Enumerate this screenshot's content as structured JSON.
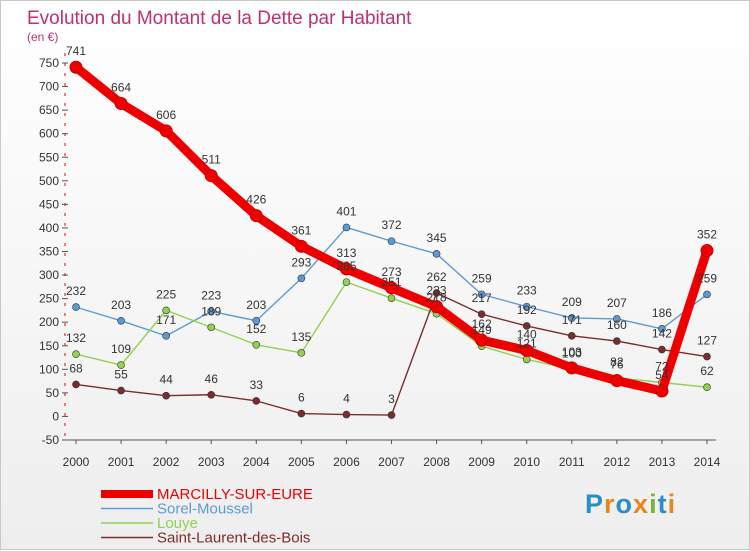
{
  "header": {
    "title": "Evolution du Montant de la Dette par Habitant",
    "unit": "(en €)"
  },
  "logo": {
    "text": "Proxiti",
    "colors": [
      "#2a8fc9",
      "#e8871a",
      "#2a8fc9",
      "#e8871a",
      "#7ab32e",
      "#2a8fc9",
      "#e8871a"
    ]
  },
  "chart_data": {
    "type": "line",
    "title": "Evolution du Montant de la Dette par Habitant",
    "ylabel": "(en €)",
    "x": [
      "2000",
      "2001",
      "2002",
      "2003",
      "2004",
      "2005",
      "2006",
      "2007",
      "2008",
      "2009",
      "2010",
      "2011",
      "2012",
      "2013",
      "2014"
    ],
    "ylim": [
      -50,
      750
    ],
    "yticks": [
      -50,
      0,
      50,
      100,
      150,
      200,
      250,
      300,
      350,
      400,
      450,
      500,
      550,
      600,
      650,
      700,
      750
    ],
    "grid": false,
    "legend_position": "bottom-left",
    "series": [
      {
        "name": "MARCILLY-SUR-EURE",
        "color": "#ee0000",
        "thick": true,
        "values": [
          741,
          664,
          606,
          511,
          426,
          361,
          313,
          273,
          233,
          162,
          140,
          103,
          76,
          54,
          352
        ],
        "labels": [
          "741",
          "664",
          "606",
          "511",
          "426",
          "361",
          "313",
          "273",
          "233",
          "162",
          "140",
          "103",
          "76",
          "54",
          "352"
        ]
      },
      {
        "name": "Sorel-Moussel",
        "color": "#5b9bd5",
        "thick": false,
        "values": [
          232,
          203,
          171,
          223,
          203,
          293,
          401,
          372,
          345,
          259,
          233,
          209,
          207,
          186,
          259
        ],
        "labels": [
          "232",
          "203",
          "171",
          "223",
          "203",
          "293",
          "401",
          "372",
          "345",
          "259",
          "233",
          "209",
          "207",
          "186",
          "259"
        ]
      },
      {
        "name": "Louye",
        "color": "#92d050",
        "thick": false,
        "values": [
          132,
          109,
          225,
          189,
          152,
          135,
          285,
          251,
          218,
          149,
          121,
          100,
          82,
          72,
          62
        ],
        "labels": [
          "132",
          "109",
          "225",
          "189",
          "152",
          "135",
          "285",
          "251",
          "218",
          "149",
          "121",
          "100",
          "82",
          "72",
          "62"
        ]
      },
      {
        "name": "Saint-Laurent-des-Bois",
        "color": "#7b2c2c",
        "thick": false,
        "values": [
          68,
          55,
          44,
          46,
          33,
          6,
          4,
          3,
          262,
          217,
          192,
          171,
          160,
          142,
          127
        ],
        "labels": [
          "68",
          "55",
          "44",
          "46",
          "33",
          "6",
          "4",
          "3",
          "262",
          "217",
          "192",
          "171",
          "160",
          "142",
          "127"
        ]
      }
    ]
  }
}
